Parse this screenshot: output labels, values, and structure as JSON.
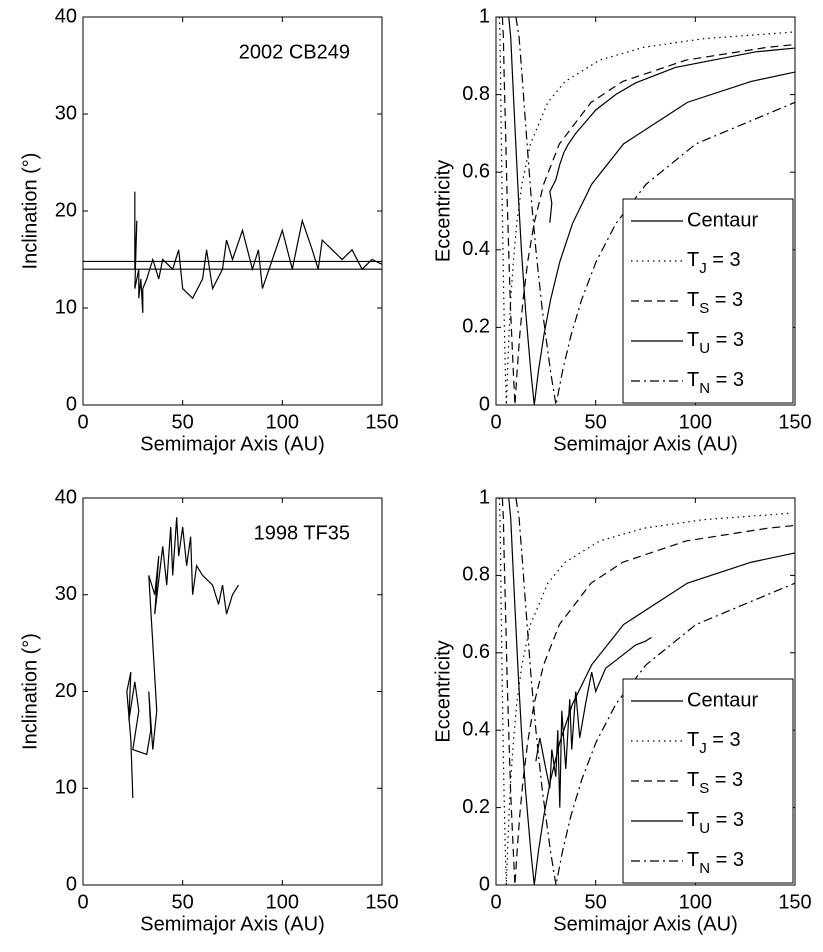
{
  "chart_data": [
    {
      "type": "line",
      "annotation": "2002 CB249",
      "xlabel": "Semimajor Axis (AU)",
      "ylabel": "Inclination (°)",
      "xlim": [
        0,
        150
      ],
      "ylim": [
        0,
        40
      ],
      "xticks": [
        0,
        50,
        100,
        150
      ],
      "yticks": [
        0,
        10,
        20,
        30,
        40
      ],
      "series": [
        {
          "color": "#000000",
          "dash": "solid",
          "x": [
            26,
            26,
            27,
            26,
            28,
            28,
            29,
            30,
            30,
            32,
            35,
            38,
            40,
            45,
            48,
            50,
            55,
            60,
            62,
            65,
            70,
            72,
            75,
            80,
            85,
            88,
            90,
            95,
            100,
            105,
            110,
            115,
            118,
            120,
            125,
            130,
            135,
            140,
            145,
            150
          ],
          "values": [
            22,
            14,
            19,
            12,
            14,
            11,
            13,
            9.5,
            12,
            13,
            15,
            13,
            15,
            14,
            16,
            12,
            11,
            13,
            16,
            12,
            14,
            17,
            15,
            18,
            14,
            16,
            12,
            15,
            18,
            14,
            19,
            16,
            14,
            17,
            16,
            15,
            16,
            14,
            15,
            14.5
          ]
        },
        {
          "color": "#000000",
          "dash": "solid",
          "x": [
            0,
            150
          ],
          "values": [
            14,
            14
          ]
        },
        {
          "color": "#000000",
          "dash": "solid",
          "x": [
            0,
            150
          ],
          "values": [
            14.8,
            14.8
          ]
        }
      ]
    },
    {
      "type": "line",
      "xlabel": "Semimajor Axis (AU)",
      "ylabel": "Eccentricity",
      "xlim": [
        0,
        150
      ],
      "ylim": [
        0,
        1
      ],
      "xticks": [
        0,
        50,
        100,
        150
      ],
      "yticks": [
        0,
        0.2,
        0.4,
        0.6,
        0.8,
        1
      ],
      "legend": "lower right",
      "series": [
        {
          "name": "Centaur",
          "color": "#000000",
          "dash": "solid",
          "x": [
            27,
            28,
            27,
            30,
            32,
            34,
            36,
            40,
            45,
            50,
            55,
            60,
            70,
            80,
            90,
            100,
            110,
            120,
            130,
            140,
            150
          ],
          "values": [
            0.47,
            0.52,
            0.55,
            0.58,
            0.62,
            0.65,
            0.67,
            0.7,
            0.73,
            0.76,
            0.78,
            0.8,
            0.83,
            0.85,
            0.87,
            0.88,
            0.89,
            0.9,
            0.91,
            0.915,
            0.92
          ]
        },
        {
          "name": "TJ = 3",
          "color": "#000000",
          "dash": "dotted",
          "x": [
            1.7,
            2.0,
            2.3,
            2.6,
            3.1,
            3.5,
            4.0,
            4.7,
            5.2,
            5.8,
            6.5,
            7.4,
            8.7,
            10.4,
            13.0,
            17.3,
            26.0,
            34.7,
            52.0,
            74.3,
            104.0,
            148.6
          ],
          "values": [
            1,
            0.947,
            0.847,
            0.707,
            0.531,
            0.395,
            0.246,
            0.085,
            0,
            0.088,
            0.179,
            0.272,
            0.369,
            0.468,
            0.569,
            0.673,
            0.78,
            0.834,
            0.889,
            0.922,
            0.944,
            0.961
          ]
        },
        {
          "name": "TS = 3",
          "color": "#000000",
          "dash": "dashed",
          "x": [
            3.2,
            3.7,
            4.1,
            4.8,
            5.6,
            6.4,
            7.3,
            8.7,
            9.5,
            10.6,
            11.9,
            13.6,
            15.9,
            19.1,
            23.9,
            31.8,
            47.7,
            63.6,
            95.4,
            136.3,
            150
          ],
          "values": [
            1,
            0.947,
            0.847,
            0.707,
            0.531,
            0.395,
            0.246,
            0.085,
            0,
            0.088,
            0.179,
            0.272,
            0.369,
            0.468,
            0.569,
            0.673,
            0.78,
            0.834,
            0.889,
            0.922,
            0.929
          ]
        },
        {
          "name": "TU = 3",
          "color": "#000000",
          "dash": "solid",
          "x": [
            6.4,
            7.4,
            8.3,
            9.6,
            11.3,
            12.8,
            14.8,
            17.5,
            19.2,
            21.3,
            24.0,
            27.4,
            32.0,
            38.4,
            48.0,
            64.0,
            96.0,
            128.0,
            150
          ],
          "values": [
            1,
            0.947,
            0.847,
            0.707,
            0.531,
            0.395,
            0.246,
            0.085,
            0,
            0.088,
            0.179,
            0.272,
            0.369,
            0.468,
            0.569,
            0.673,
            0.78,
            0.834,
            0.858
          ]
        },
        {
          "name": "TN = 3",
          "color": "#000000",
          "dash": "dashdot",
          "x": [
            10.0,
            11.6,
            13.1,
            15.1,
            17.7,
            20.1,
            23.2,
            27.4,
            30.1,
            33.4,
            37.6,
            43.0,
            50.2,
            60.2,
            75.3,
            100.3,
            150
          ],
          "values": [
            1,
            0.947,
            0.847,
            0.707,
            0.531,
            0.395,
            0.246,
            0.085,
            0,
            0.088,
            0.179,
            0.272,
            0.369,
            0.468,
            0.569,
            0.673,
            0.78
          ]
        }
      ]
    },
    {
      "type": "line",
      "annotation": "1998 TF35",
      "xlabel": "Semimajor Axis (AU)",
      "ylabel": "Inclination (°)",
      "xlim": [
        0,
        150
      ],
      "ylim": [
        0,
        40
      ],
      "xticks": [
        0,
        50,
        100,
        150
      ],
      "yticks": [
        0,
        10,
        20,
        30,
        40
      ],
      "series": [
        {
          "color": "#000000",
          "dash": "solid",
          "x": [
            25,
            24,
            22,
            24,
            23,
            26,
            28,
            25,
            32,
            34,
            33,
            35,
            37,
            35,
            33,
            36,
            38,
            36,
            40,
            42,
            44,
            45,
            47,
            48,
            50,
            52,
            54,
            55,
            57,
            60,
            65,
            68,
            70,
            72,
            75,
            78
          ],
          "values": [
            9,
            15,
            20,
            22,
            17,
            21,
            18,
            14,
            13.5,
            16,
            20,
            14,
            18,
            25,
            32,
            30,
            34,
            28,
            35,
            31,
            37,
            32,
            38,
            34,
            37,
            33,
            36,
            30,
            33,
            32,
            31,
            29,
            31,
            28,
            30,
            31
          ]
        }
      ]
    },
    {
      "type": "line",
      "xlabel": "Semimajor Axis (AU)",
      "ylabel": "Eccentricity",
      "xlim": [
        0,
        150
      ],
      "ylim": [
        0,
        1
      ],
      "xticks": [
        0,
        50,
        100,
        150
      ],
      "yticks": [
        0,
        0.2,
        0.4,
        0.6,
        0.8,
        1
      ],
      "legend": "lower right",
      "series": [
        {
          "name": "Centaur",
          "color": "#000000",
          "dash": "solid",
          "x": [
            20,
            22,
            25,
            27,
            28,
            30,
            31,
            32,
            33,
            35,
            37,
            38,
            40,
            42,
            45,
            48,
            50,
            55,
            60,
            65,
            70,
            75,
            78
          ],
          "values": [
            0.32,
            0.38,
            0.3,
            0.25,
            0.35,
            0.28,
            0.4,
            0.2,
            0.45,
            0.3,
            0.48,
            0.35,
            0.5,
            0.38,
            0.47,
            0.55,
            0.5,
            0.56,
            0.58,
            0.6,
            0.62,
            0.63,
            0.64
          ]
        },
        {
          "name": "TJ = 3",
          "color": "#000000",
          "dash": "dotted",
          "x": [
            1.7,
            2.0,
            2.3,
            2.6,
            3.1,
            3.5,
            4.0,
            4.7,
            5.2,
            5.8,
            6.5,
            7.4,
            8.7,
            10.4,
            13.0,
            17.3,
            26.0,
            34.7,
            52.0,
            74.3,
            104.0,
            148.6
          ],
          "values": [
            1,
            0.947,
            0.847,
            0.707,
            0.531,
            0.395,
            0.246,
            0.085,
            0,
            0.088,
            0.179,
            0.272,
            0.369,
            0.468,
            0.569,
            0.673,
            0.78,
            0.834,
            0.889,
            0.922,
            0.944,
            0.961
          ]
        },
        {
          "name": "TS = 3",
          "color": "#000000",
          "dash": "dashed",
          "x": [
            3.2,
            3.7,
            4.1,
            4.8,
            5.6,
            6.4,
            7.3,
            8.7,
            9.5,
            10.6,
            11.9,
            13.6,
            15.9,
            19.1,
            23.9,
            31.8,
            47.7,
            63.6,
            95.4,
            136.3,
            150
          ],
          "values": [
            1,
            0.947,
            0.847,
            0.707,
            0.531,
            0.395,
            0.246,
            0.085,
            0,
            0.088,
            0.179,
            0.272,
            0.369,
            0.468,
            0.569,
            0.673,
            0.78,
            0.834,
            0.889,
            0.922,
            0.929
          ]
        },
        {
          "name": "TU = 3",
          "color": "#000000",
          "dash": "solid",
          "x": [
            6.4,
            7.4,
            8.3,
            9.6,
            11.3,
            12.8,
            14.8,
            17.5,
            19.2,
            21.3,
            24.0,
            27.4,
            32.0,
            38.4,
            48.0,
            64.0,
            96.0,
            128.0,
            150
          ],
          "values": [
            1,
            0.947,
            0.847,
            0.707,
            0.531,
            0.395,
            0.246,
            0.085,
            0,
            0.088,
            0.179,
            0.272,
            0.369,
            0.468,
            0.569,
            0.673,
            0.78,
            0.834,
            0.858
          ]
        },
        {
          "name": "TN = 3",
          "color": "#000000",
          "dash": "dashdot",
          "x": [
            10.0,
            11.6,
            13.1,
            15.1,
            17.7,
            20.1,
            23.2,
            27.4,
            30.1,
            33.4,
            37.6,
            43.0,
            50.2,
            60.2,
            75.3,
            100.3,
            150
          ],
          "values": [
            1,
            0.947,
            0.847,
            0.707,
            0.531,
            0.395,
            0.246,
            0.085,
            0,
            0.088,
            0.179,
            0.272,
            0.369,
            0.468,
            0.569,
            0.673,
            0.78
          ]
        }
      ]
    }
  ]
}
